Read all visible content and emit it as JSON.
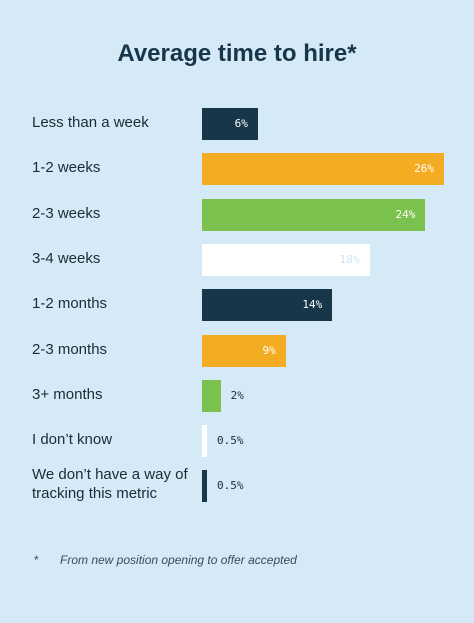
{
  "chart_data": {
    "type": "bar",
    "orientation": "horizontal",
    "title": "Average time to hire*",
    "categories": [
      "Less than a week",
      "1-2 weeks",
      "2-3 weeks",
      "3-4 weeks",
      "1-2 months",
      "2-3 months",
      "3+ months",
      "I don’t know",
      "We don’t have a way of tracking this metric"
    ],
    "values": [
      6,
      26,
      24,
      18,
      14,
      9,
      2,
      0.5,
      0.5
    ],
    "value_labels": [
      "6%",
      "26%",
      "24%",
      "18%",
      "14%",
      "9%",
      "2%",
      "0.5%",
      "0.5%"
    ],
    "colors": [
      "#17364a",
      "#f4ac22",
      "#7ac24d",
      "#ffffff",
      "#17364a",
      "#f4ac22",
      "#7ac24d",
      "#ffffff",
      "#17364a"
    ],
    "label_colors": [
      "#ffffff",
      "#ffffff",
      "#ffffff",
      "#cfe3f2",
      "#ffffff",
      "#ffffff",
      "#1c2b36",
      "#1c2b36",
      "#1c2b36"
    ],
    "xlim": [
      0,
      26
    ],
    "grid": false,
    "legend": "none"
  },
  "footnote": {
    "marker": "*",
    "text": "From new position opening to offer accepted"
  },
  "colors": {
    "background": "#d5e9f6",
    "title": "#17364a"
  }
}
